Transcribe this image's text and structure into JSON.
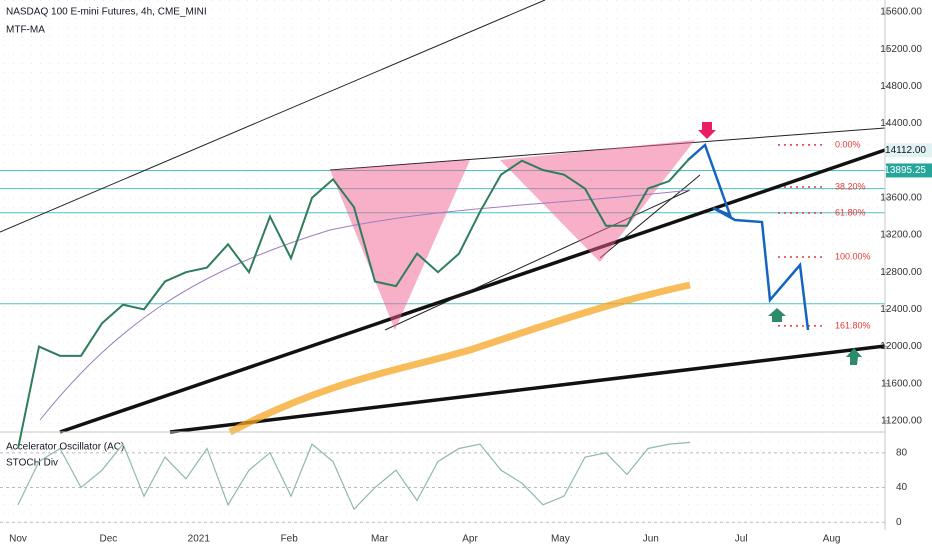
{
  "chart_data": [
    {
      "type": "line",
      "title": "NASDAQ 100 E-mini Futures, 4h, CME_MINI",
      "subtitle": "MTF-MA",
      "color": "#2e7d5b",
      "values": [
        10900,
        12000,
        11900,
        11900,
        12250,
        12450,
        12400,
        12700,
        12800,
        12850,
        13100,
        12800,
        13400,
        12950,
        13600,
        13800,
        13500,
        12700,
        12650,
        13000,
        12800,
        13000,
        13450,
        13850,
        14000,
        13900,
        13850,
        13700,
        13300,
        13300,
        13700,
        13780,
        14030
      ],
      "months": [
        "Nov",
        "Dec",
        "2021",
        "Feb",
        "Mar",
        "Apr",
        "May",
        "Jun",
        "Jul",
        "Aug"
      ],
      "ylim": [
        11080,
        15730
      ],
      "yticks": [
        {
          "value": 15600,
          "label": "15600.00"
        },
        {
          "value": 15200,
          "label": "15200.00"
        },
        {
          "value": 14800,
          "label": "14800.00"
        },
        {
          "value": 14400,
          "label": "14400.00"
        },
        {
          "value": 13600,
          "label": "13600.00"
        },
        {
          "value": 13200,
          "label": "13200.00"
        },
        {
          "value": 12800,
          "label": "12800.00"
        },
        {
          "value": 12400,
          "label": "12400.00"
        },
        {
          "value": 12000,
          "label": "12000.00"
        },
        {
          "value": 11600,
          "label": "11600.00"
        },
        {
          "value": 11200,
          "label": "11200.00"
        }
      ],
      "last_price": {
        "value": 14112,
        "label": "14112.00"
      },
      "level_price": {
        "value": 13895.25,
        "label": "13895.25"
      },
      "levels": [
        13895.25,
        13700,
        13440,
        12460
      ],
      "fib": [
        {
          "value": 14170,
          "label": "0.00%"
        },
        {
          "value": 13717,
          "label": "38.20%"
        },
        {
          "value": 13437,
          "label": "61.80%"
        },
        {
          "value": 12964,
          "label": "100.00%"
        },
        {
          "value": 12222,
          "label": "161.80%"
        }
      ]
    },
    {
      "type": "line",
      "title": "Accelerator Oscillator (AC)",
      "subtitle": "STOCH Div",
      "color": "#8fb8b0",
      "values": [
        20,
        70,
        85,
        40,
        60,
        90,
        30,
        75,
        50,
        85,
        20,
        60,
        80,
        30,
        90,
        70,
        15,
        40,
        60,
        25,
        70,
        85,
        90,
        60,
        45,
        20,
        30,
        75,
        80,
        55,
        85,
        90,
        92
      ],
      "ylim": [
        -9,
        104
      ],
      "yticks": [
        80,
        40,
        0
      ]
    }
  ]
}
